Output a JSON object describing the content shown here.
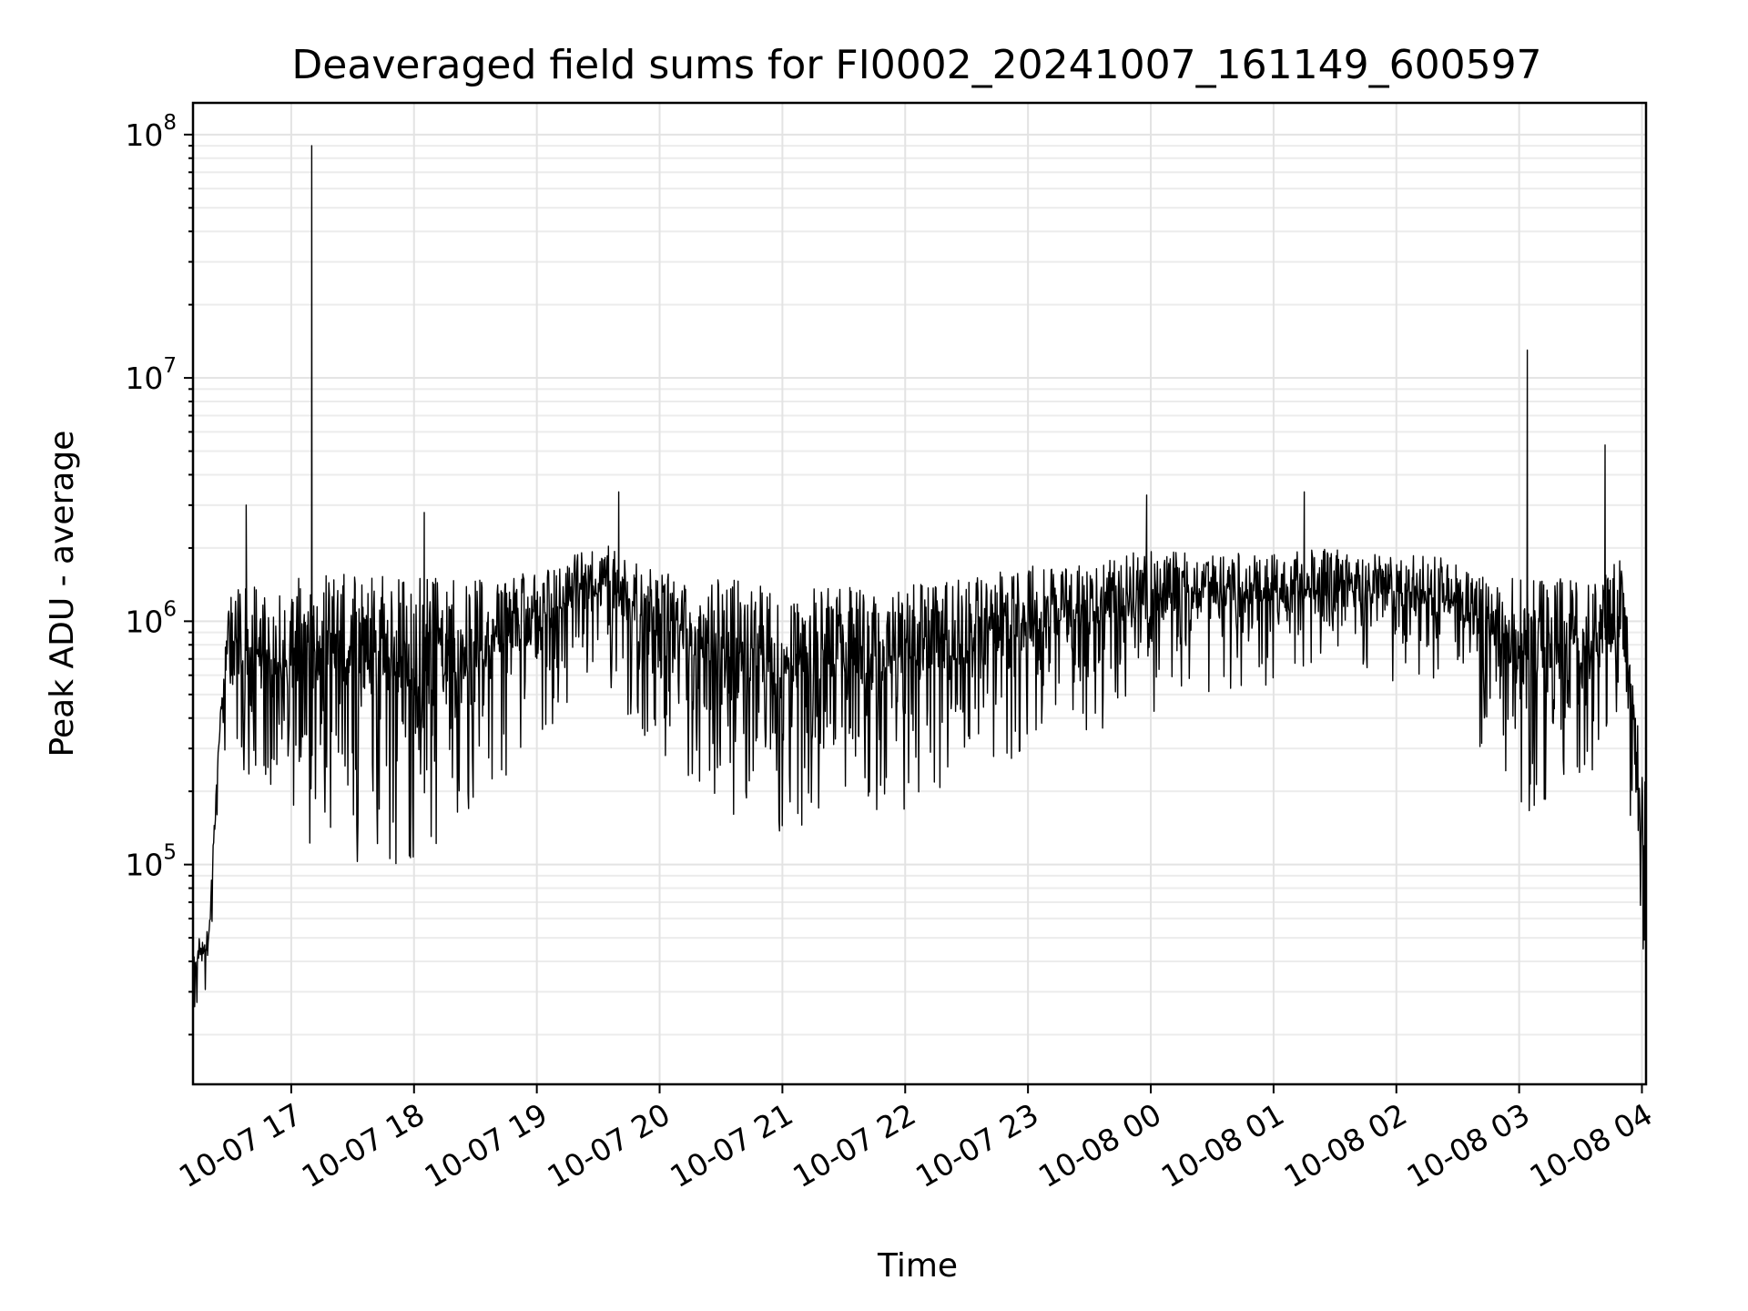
{
  "chart_data": {
    "type": "line",
    "title": "Deaveraged field sums for FI0002_20241007_161149_600597",
    "xlabel": "Time",
    "ylabel": "Peak ADU - average",
    "x_scale": "time",
    "y_scale": "log",
    "xlim": [
      "2024-10-07 16:12",
      "2024-10-08 04:02"
    ],
    "ylim": [
      12500,
      135000000
    ],
    "grid": "both (major and minor on y)",
    "legend": "none",
    "x_ticks": [
      "10-07 17",
      "10-07 18",
      "10-07 19",
      "10-07 20",
      "10-07 21",
      "10-07 22",
      "10-07 23",
      "10-08 00",
      "10-08 01",
      "10-08 02",
      "10-08 03",
      "10-08 04"
    ],
    "y_ticks": [
      {
        "base": "10",
        "exp": "5",
        "value": 100000
      },
      {
        "base": "10",
        "exp": "6",
        "value": 1000000
      },
      {
        "base": "10",
        "exp": "7",
        "value": 10000000
      },
      {
        "base": "10",
        "exp": "8",
        "value": 100000000
      }
    ],
    "line_color": "#000000",
    "noise_envelope": {
      "description": "Dense noisy series; approximate upper/lower envelope over time",
      "x": [
        "2024-10-07 16:12",
        "2024-10-07 16:20",
        "2024-10-07 16:25",
        "2024-10-07 16:30",
        "2024-10-07 17:00",
        "2024-10-07 17:30",
        "2024-10-07 18:00",
        "2024-10-07 18:30",
        "2024-10-07 19:00",
        "2024-10-07 19:30",
        "2024-10-07 20:00",
        "2024-10-07 20:30",
        "2024-10-07 21:00",
        "2024-10-07 21:30",
        "2024-10-07 22:00",
        "2024-10-07 22:30",
        "2024-10-07 23:00",
        "2024-10-07 23:30",
        "2024-10-08 00:00",
        "2024-10-08 00:30",
        "2024-10-08 01:00",
        "2024-10-08 01:30",
        "2024-10-08 02:00",
        "2024-10-08 02:30",
        "2024-10-08 03:00",
        "2024-10-08 03:30",
        "2024-10-08 03:50",
        "2024-10-08 04:00"
      ],
      "upper": [
        45000,
        60000,
        400000,
        1400000,
        1500000,
        1600000,
        1500000,
        1500000,
        1600000,
        2200000,
        1600000,
        1500000,
        1400000,
        1400000,
        1400000,
        1500000,
        1700000,
        1700000,
        2000000,
        1900000,
        1900000,
        2000000,
        1900000,
        1800000,
        1500000,
        1500000,
        1800000,
        250000
      ],
      "lower": [
        30000,
        38000,
        300000,
        350000,
        150000,
        120000,
        120000,
        200000,
        350000,
        600000,
        350000,
        200000,
        160000,
        180000,
        200000,
        250000,
        350000,
        400000,
        500000,
        600000,
        650000,
        700000,
        600000,
        500000,
        200000,
        200000,
        350000,
        35000
      ]
    },
    "spikes": [
      {
        "x": "2024-10-07 17:10",
        "y": 90000000
      },
      {
        "x": "2024-10-07 16:38",
        "y": 3000000
      },
      {
        "x": "2024-10-07 18:05",
        "y": 2800000
      },
      {
        "x": "2024-10-07 19:40",
        "y": 3400000
      },
      {
        "x": "2024-10-07 23:58",
        "y": 3300000
      },
      {
        "x": "2024-10-08 01:15",
        "y": 3400000
      },
      {
        "x": "2024-10-08 03:04",
        "y": 13000000
      },
      {
        "x": "2024-10-08 03:42",
        "y": 5300000
      }
    ]
  }
}
